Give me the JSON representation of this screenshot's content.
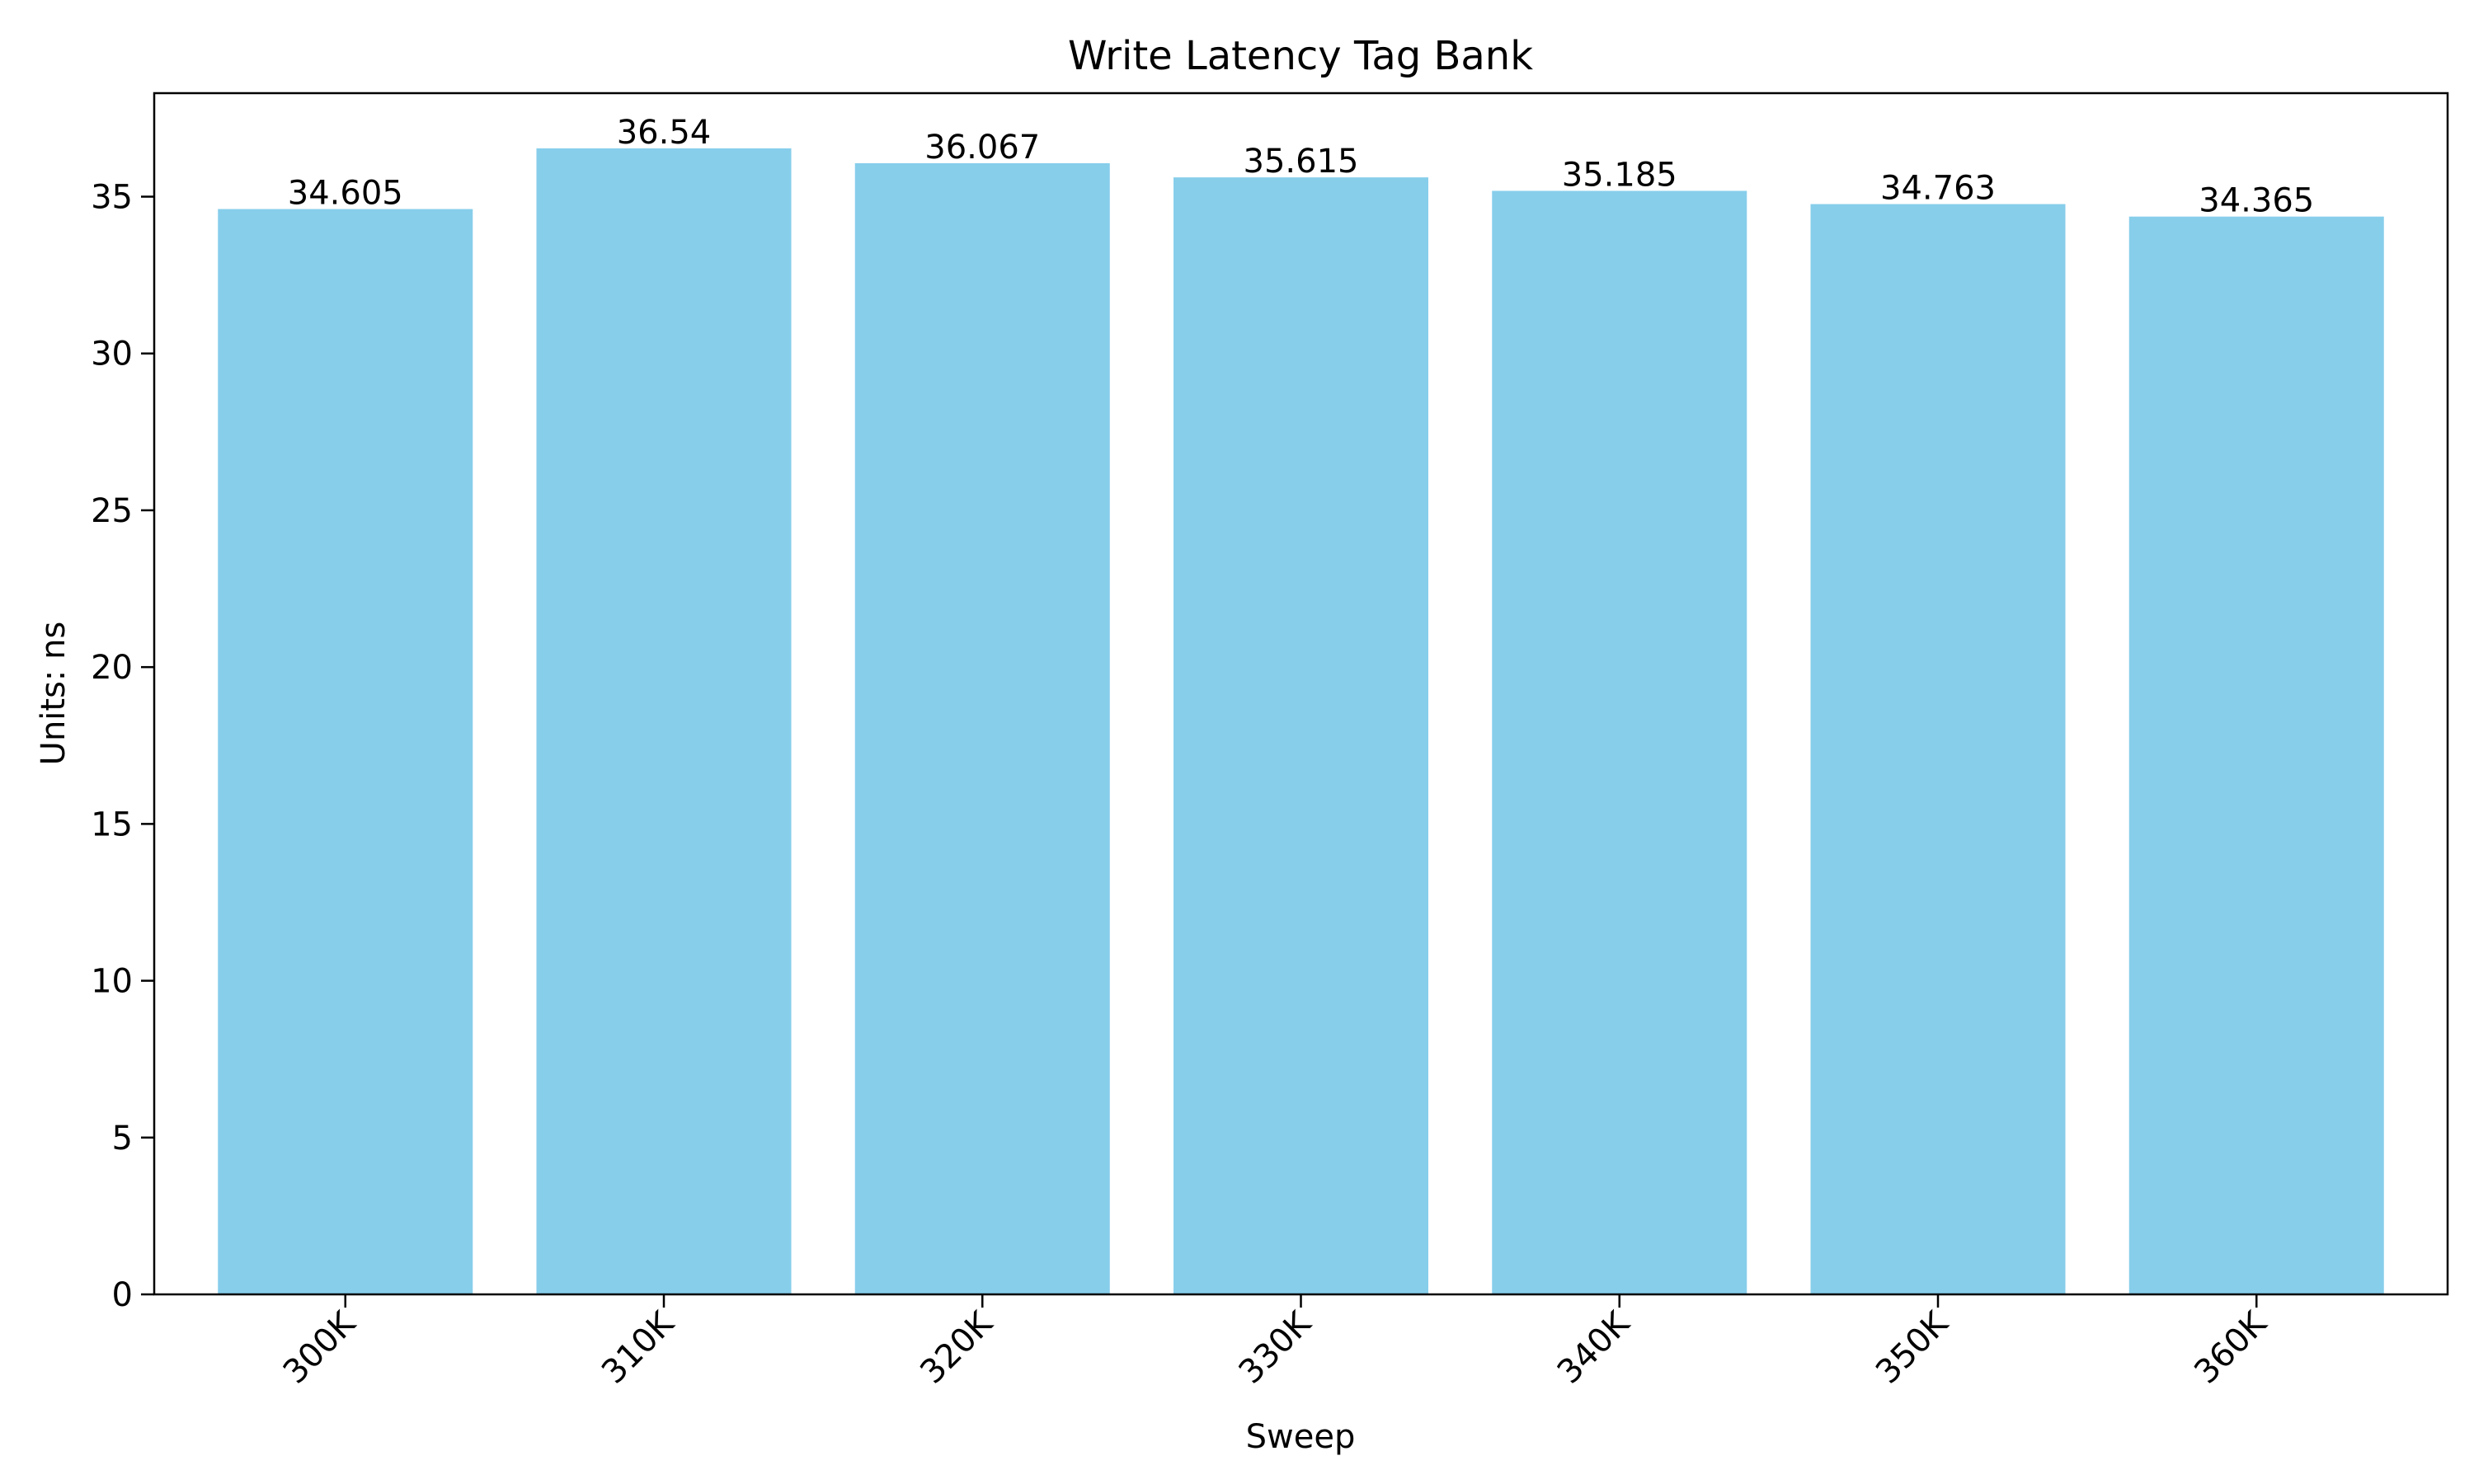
{
  "chart_data": {
    "type": "bar",
    "title": "Write Latency Tag Bank",
    "xlabel": "Sweep",
    "ylabel": "Units: ns",
    "categories": [
      "300K",
      "310K",
      "320K",
      "330K",
      "340K",
      "350K",
      "360K"
    ],
    "values": [
      34.605,
      36.54,
      36.067,
      35.615,
      35.185,
      34.763,
      34.365
    ],
    "value_labels": [
      "34.605",
      "36.54",
      "36.067",
      "35.615",
      "35.185",
      "34.763",
      "34.365"
    ],
    "ylim": [
      0,
      38.3
    ],
    "yticks": [
      0,
      5,
      10,
      15,
      20,
      25,
      30,
      35
    ],
    "grid": false,
    "legend": "none",
    "bar_color": "#87CEEB"
  }
}
